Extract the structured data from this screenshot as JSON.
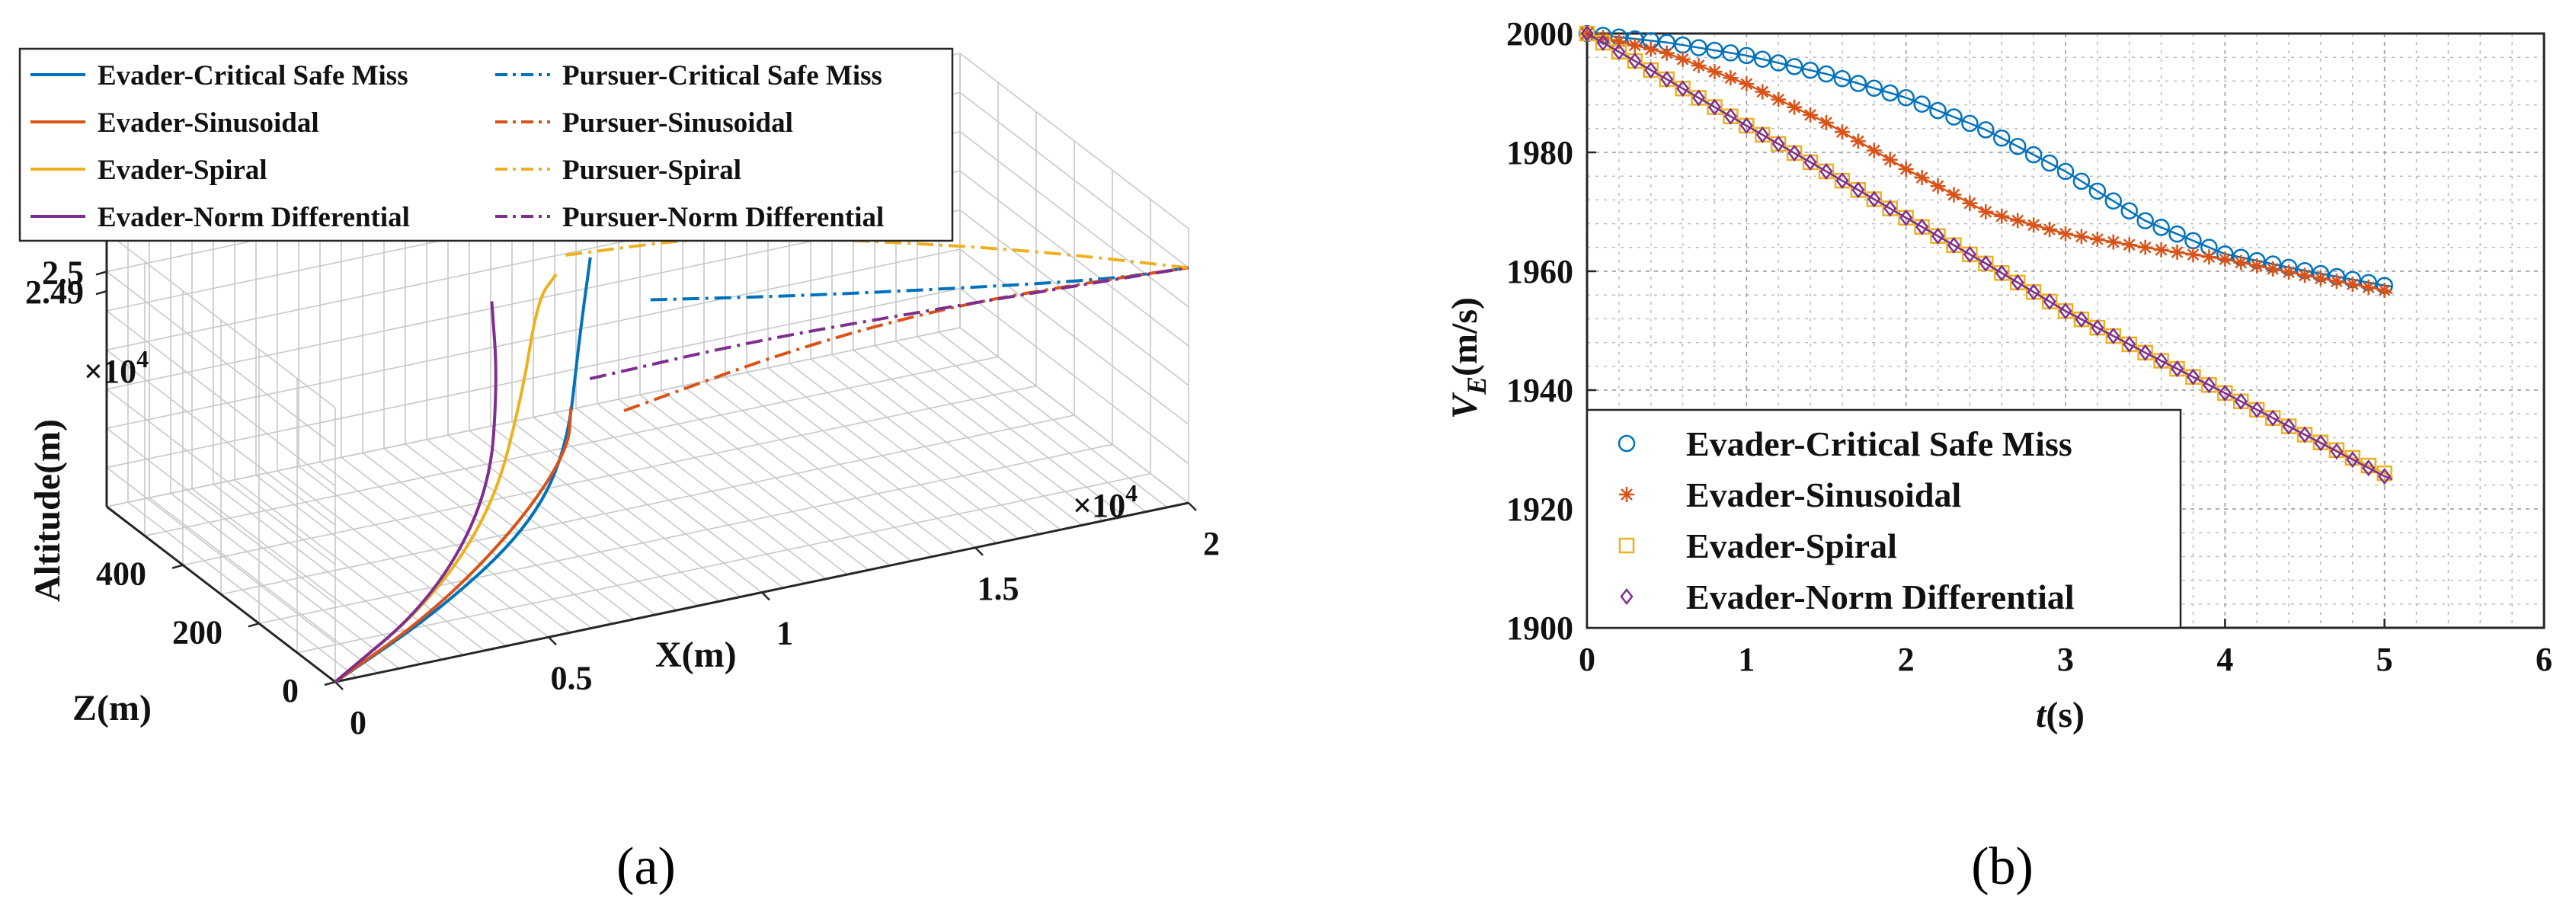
{
  "chart_data": [
    {
      "panel_label": "(a)",
      "type": "line",
      "projection": "3d",
      "xlabel": "X(m)",
      "ylabel": "Z(m)",
      "zlabel": "Altitude(m)",
      "x_exponent": "×10",
      "x_exponent_power": "4",
      "z_exponent": "×10",
      "z_exponent_power": "4",
      "x_ticks": [
        "0",
        "0.5",
        "1",
        "1.5",
        "2"
      ],
      "y_ticks": [
        "0",
        "200",
        "400"
      ],
      "z_ticks": [
        "2.49",
        "2.5"
      ],
      "xlim": [
        0,
        20000
      ],
      "ylim": [
        0,
        600
      ],
      "zlim": [
        24880,
        25020
      ],
      "legend_position": "top-left",
      "series": [
        {
          "name": "Evader-Critical Safe Miss",
          "color": "#0072BD",
          "dash": "solid",
          "points": [
            [
              0,
              0,
              24880
            ],
            [
              2500,
              20,
              24900
            ],
            [
              5000,
              60,
              24925
            ],
            [
              6500,
              120,
              24950
            ],
            [
              7500,
              200,
              24990
            ],
            [
              8300,
              260,
              25020
            ]
          ]
        },
        {
          "name": "Pursuer-Critical Safe Miss",
          "color": "#0072BD",
          "dash": "dashdot",
          "points": [
            [
              9800,
              270,
              24990
            ],
            [
              12500,
              200,
              24990
            ],
            [
              15500,
              120,
              24992
            ],
            [
              18500,
              40,
              24995
            ],
            [
              20000,
              0,
              25000
            ]
          ]
        },
        {
          "name": "Evader-Sinusoidal",
          "color": "#D95319",
          "dash": "solid",
          "points": [
            [
              0,
              0,
              24880
            ],
            [
              2500,
              25,
              24900
            ],
            [
              5000,
              80,
              24925
            ],
            [
              6800,
              150,
              24945
            ],
            [
              7400,
              210,
              24955
            ]
          ]
        },
        {
          "name": "Pursuer-Sinusoidal",
          "color": "#D95319",
          "dash": "dashdot",
          "points": [
            [
              9000,
              250,
              24940
            ],
            [
              12500,
              190,
              24965
            ],
            [
              15500,
              110,
              24985
            ],
            [
              18500,
              40,
              24995
            ],
            [
              20000,
              0,
              25000
            ]
          ]
        },
        {
          "name": "Evader-Spiral",
          "color": "#EDB120",
          "dash": "solid",
          "points": [
            [
              0,
              0,
              24880
            ],
            [
              2500,
              30,
              24905
            ],
            [
              4500,
              90,
              24935
            ],
            [
              5800,
              160,
              24975
            ],
            [
              6800,
              230,
              25010
            ],
            [
              7500,
              260,
              25015
            ]
          ]
        },
        {
          "name": "Pursuer-Spiral",
          "color": "#EDB120",
          "dash": "dashdot",
          "points": [
            [
              7900,
              280,
              25020
            ],
            [
              11000,
              220,
              25025
            ],
            [
              14000,
              140,
              25020
            ],
            [
              17000,
              70,
              25012
            ],
            [
              20000,
              0,
              25000
            ]
          ]
        },
        {
          "name": "Evader-Norm Differential",
          "color": "#7E2F8E",
          "dash": "solid",
          "points": [
            [
              0,
              0,
              24880
            ],
            [
              2500,
              30,
              24905
            ],
            [
              4500,
              100,
              24940
            ],
            [
              5500,
              190,
              24980
            ],
            [
              5900,
              250,
              25010
            ]
          ]
        },
        {
          "name": "Pursuer-Norm Differential",
          "color": "#7E2F8E",
          "dash": "dashdot",
          "points": [
            [
              8200,
              250,
              24960
            ],
            [
              11500,
              180,
              24975
            ],
            [
              15000,
              110,
              24985
            ],
            [
              18000,
              40,
              24995
            ],
            [
              20000,
              0,
              25000
            ]
          ]
        }
      ]
    },
    {
      "panel_label": "(b)",
      "type": "line",
      "xlabel_italic": "t",
      "xlabel_unit": "(s)",
      "ylabel_symbol": "V",
      "ylabel_sub": "E",
      "ylabel_unit": "(m/s)",
      "xlim": [
        0,
        6
      ],
      "ylim": [
        1900,
        2000
      ],
      "x_ticks": [
        "0",
        "1",
        "2",
        "3",
        "4",
        "5",
        "6"
      ],
      "y_ticks": [
        "1900",
        "1920",
        "1940",
        "1960",
        "1980",
        "2000"
      ],
      "grid": true,
      "legend_position": "bottom-left",
      "x": [
        0,
        0.5,
        1,
        1.5,
        2,
        2.5,
        3,
        3.5,
        4,
        4.5,
        5,
        5.05
      ],
      "series": [
        {
          "name": "Evader-Critical Safe Miss",
          "color": "#0072BD",
          "marker": "circle",
          "values": [
            2000,
            1998.5,
            1996.3,
            1993.2,
            1989.2,
            1983.8,
            1976.8,
            1968.5,
            1962.9,
            1960.1,
            1957.6,
            1957.4
          ]
        },
        {
          "name": "Evader-Sinusoidal",
          "color": "#D95319",
          "marker": "asterisk",
          "values": [
            2000,
            1996.7,
            1991.5,
            1985.0,
            1977.2,
            1970.0,
            1966.3,
            1964.0,
            1962.0,
            1959.3,
            1956.8,
            1956.3
          ]
        },
        {
          "name": "Evader-Spiral",
          "color": "#EDB120",
          "marker": "square",
          "values": [
            2000,
            1992.3,
            1984.5,
            1976.8,
            1969.0,
            1961.3,
            1953.3,
            1946.3,
            1939.5,
            1932.5,
            1926.0,
            1925.3
          ]
        },
        {
          "name": "Evader-Norm Differential",
          "color": "#7E2F8E",
          "marker": "diamond",
          "values": [
            2000,
            1992.3,
            1984.5,
            1976.8,
            1969.0,
            1961.3,
            1953.3,
            1946.3,
            1939.5,
            1932.5,
            1925.5,
            1925.0
          ]
        }
      ]
    }
  ]
}
